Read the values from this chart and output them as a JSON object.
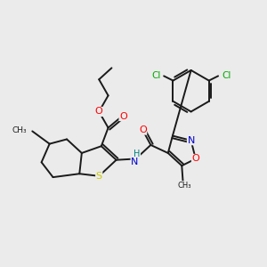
{
  "background_color": "#ebebeb",
  "bond_color": "#1a1a1a",
  "atom_colors": {
    "O": "#ff0000",
    "N": "#0000cd",
    "S": "#cccc00",
    "Cl": "#00aa00",
    "H": "#008080",
    "C": "#1a1a1a"
  },
  "figsize": [
    3.0,
    3.0
  ],
  "dpi": 100
}
